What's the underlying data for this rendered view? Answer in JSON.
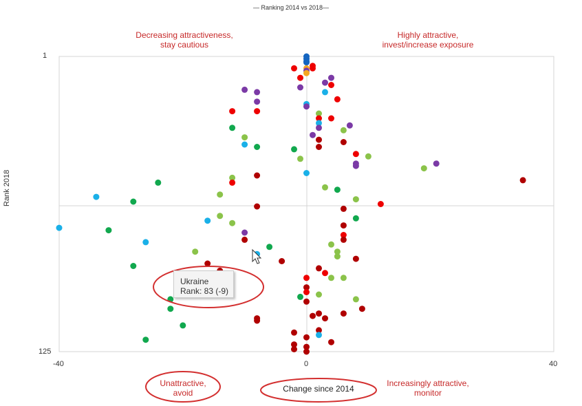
{
  "chart_data": {
    "type": "scatter",
    "title": "— Ranking 2014 vs 2018—",
    "xlabel": "Change since 2014",
    "ylabel": "Rank 2018",
    "xlim": [
      -40,
      40
    ],
    "ylim": [
      1,
      125
    ],
    "y_inverted": true,
    "xticks": [
      "-40",
      "0",
      "40"
    ],
    "yticks": [
      "1",
      "125"
    ],
    "grid": false,
    "quadrant_labels": {
      "top_left": "Decreasing attractiveness,\nstay cautious",
      "top_right": "Highly attractive,\ninvest/increase exposure",
      "bottom_left": "Unattractive,\navoid",
      "bottom_right": "Increasingly attractive,\nmonitor"
    },
    "tooltip": {
      "name": "Ukraine",
      "text": "Rank: 83 (-9)"
    },
    "colors": {
      "blue": "#1565c0",
      "cyan": "#1ab0e8",
      "orange": "#f5a623",
      "red": "#ee0000",
      "darkred": "#b00000",
      "purple": "#7b3aa6",
      "green": "#11a84e",
      "lightgreen": "#8bc34a",
      "annotation": "#d32f2f"
    },
    "points": [
      {
        "x": 0,
        "y": 1,
        "c": "blue"
      },
      {
        "x": 0,
        "y": 2,
        "c": "blue"
      },
      {
        "x": 0,
        "y": 3,
        "c": "blue"
      },
      {
        "x": 0,
        "y": 3.5,
        "c": "blue"
      },
      {
        "x": 0,
        "y": 6,
        "c": "orange"
      },
      {
        "x": 0,
        "y": 7,
        "c": "purple"
      },
      {
        "x": 0,
        "y": 8,
        "c": "orange"
      },
      {
        "x": -2,
        "y": 6,
        "c": "red"
      },
      {
        "x": 1,
        "y": 5,
        "c": "red"
      },
      {
        "x": 1,
        "y": 6,
        "c": "red"
      },
      {
        "x": -1,
        "y": 10,
        "c": "red"
      },
      {
        "x": 4,
        "y": 10,
        "c": "purple"
      },
      {
        "x": 3,
        "y": 12,
        "c": "purple"
      },
      {
        "x": 4,
        "y": 13,
        "c": "red"
      },
      {
        "x": -1,
        "y": 14,
        "c": "purple"
      },
      {
        "x": -10,
        "y": 15,
        "c": "purple"
      },
      {
        "x": -8,
        "y": 16,
        "c": "purple"
      },
      {
        "x": 3,
        "y": 16,
        "c": "cyan"
      },
      {
        "x": 5,
        "y": 19,
        "c": "red"
      },
      {
        "x": -8,
        "y": 20,
        "c": "purple"
      },
      {
        "x": 0,
        "y": 21,
        "c": "cyan"
      },
      {
        "x": 0,
        "y": 22,
        "c": "purple"
      },
      {
        "x": -12,
        "y": 24,
        "c": "red"
      },
      {
        "x": -8,
        "y": 24,
        "c": "red"
      },
      {
        "x": 2,
        "y": 25,
        "c": "lightgreen"
      },
      {
        "x": 2,
        "y": 27,
        "c": "red"
      },
      {
        "x": 4,
        "y": 27,
        "c": "red"
      },
      {
        "x": 2,
        "y": 29,
        "c": "cyan"
      },
      {
        "x": 7,
        "y": 30,
        "c": "purple"
      },
      {
        "x": -12,
        "y": 31,
        "c": "green"
      },
      {
        "x": 2,
        "y": 31,
        "c": "purple"
      },
      {
        "x": 6,
        "y": 32,
        "c": "lightgreen"
      },
      {
        "x": -10,
        "y": 35,
        "c": "lightgreen"
      },
      {
        "x": 1,
        "y": 34,
        "c": "purple"
      },
      {
        "x": 2,
        "y": 36,
        "c": "darkred"
      },
      {
        "x": 6,
        "y": 37,
        "c": "darkred"
      },
      {
        "x": -10,
        "y": 38,
        "c": "cyan"
      },
      {
        "x": -8,
        "y": 39,
        "c": "green"
      },
      {
        "x": 2,
        "y": 39,
        "c": "darkred"
      },
      {
        "x": -2,
        "y": 40,
        "c": "green"
      },
      {
        "x": 8,
        "y": 42,
        "c": "red"
      },
      {
        "x": 10,
        "y": 43,
        "c": "lightgreen"
      },
      {
        "x": -1,
        "y": 44,
        "c": "lightgreen"
      },
      {
        "x": 8,
        "y": 46,
        "c": "purple"
      },
      {
        "x": 8,
        "y": 47,
        "c": "purple"
      },
      {
        "x": 21,
        "y": 46,
        "c": "purple"
      },
      {
        "x": 19,
        "y": 48,
        "c": "lightgreen"
      },
      {
        "x": 0,
        "y": 50,
        "c": "cyan"
      },
      {
        "x": -8,
        "y": 51,
        "c": "darkred"
      },
      {
        "x": -12,
        "y": 52,
        "c": "lightgreen"
      },
      {
        "x": -24,
        "y": 54,
        "c": "green"
      },
      {
        "x": -12,
        "y": 54,
        "c": "red"
      },
      {
        "x": 35,
        "y": 53,
        "c": "darkred"
      },
      {
        "x": 3,
        "y": 56,
        "c": "lightgreen"
      },
      {
        "x": 5,
        "y": 57,
        "c": "green"
      },
      {
        "x": -14,
        "y": 59,
        "c": "lightgreen"
      },
      {
        "x": -34,
        "y": 60,
        "c": "cyan"
      },
      {
        "x": 8,
        "y": 61,
        "c": "lightgreen"
      },
      {
        "x": -28,
        "y": 62,
        "c": "green"
      },
      {
        "x": -8,
        "y": 64,
        "c": "darkred"
      },
      {
        "x": 12,
        "y": 63,
        "c": "red"
      },
      {
        "x": 6,
        "y": 65,
        "c": "darkred"
      },
      {
        "x": -14,
        "y": 68,
        "c": "lightgreen"
      },
      {
        "x": 8,
        "y": 69,
        "c": "green"
      },
      {
        "x": -16,
        "y": 70,
        "c": "cyan"
      },
      {
        "x": -12,
        "y": 71,
        "c": "lightgreen"
      },
      {
        "x": 6,
        "y": 72,
        "c": "darkred"
      },
      {
        "x": -40,
        "y": 73,
        "c": "cyan"
      },
      {
        "x": -32,
        "y": 74,
        "c": "green"
      },
      {
        "x": -10,
        "y": 75,
        "c": "purple"
      },
      {
        "x": 6,
        "y": 76,
        "c": "red"
      },
      {
        "x": -10,
        "y": 78,
        "c": "darkred"
      },
      {
        "x": 6,
        "y": 78,
        "c": "darkred"
      },
      {
        "x": -26,
        "y": 79,
        "c": "cyan"
      },
      {
        "x": 4,
        "y": 80,
        "c": "lightgreen"
      },
      {
        "x": -6,
        "y": 81,
        "c": "green"
      },
      {
        "x": -18,
        "y": 83,
        "c": "lightgreen"
      },
      {
        "x": 5,
        "y": 83,
        "c": "lightgreen"
      },
      {
        "x": -8,
        "y": 84,
        "c": "cyan"
      },
      {
        "x": 5,
        "y": 85,
        "c": "lightgreen"
      },
      {
        "x": 8,
        "y": 86,
        "c": "darkred"
      },
      {
        "x": -4,
        "y": 87,
        "c": "darkred"
      },
      {
        "x": -16,
        "y": 88,
        "c": "darkred"
      },
      {
        "x": -28,
        "y": 89,
        "c": "green"
      },
      {
        "x": 2,
        "y": 90,
        "c": "darkred"
      },
      {
        "x": -14,
        "y": 91,
        "c": "darkred"
      },
      {
        "x": 3,
        "y": 92,
        "c": "red"
      },
      {
        "x": 4,
        "y": 94,
        "c": "lightgreen"
      },
      {
        "x": 0,
        "y": 94,
        "c": "red"
      },
      {
        "x": 6,
        "y": 94,
        "c": "lightgreen"
      },
      {
        "x": -14,
        "y": 95,
        "c": "green"
      },
      {
        "x": 0,
        "y": 98,
        "c": "darkred"
      },
      {
        "x": 0,
        "y": 100,
        "c": "red"
      },
      {
        "x": -1,
        "y": 102,
        "c": "green"
      },
      {
        "x": 2,
        "y": 101,
        "c": "lightgreen"
      },
      {
        "x": -22,
        "y": 103,
        "c": "green"
      },
      {
        "x": 8,
        "y": 103,
        "c": "lightgreen"
      },
      {
        "x": -22,
        "y": 107,
        "c": "green"
      },
      {
        "x": 0,
        "y": 104,
        "c": "darkred"
      },
      {
        "x": 9,
        "y": 107,
        "c": "darkred"
      },
      {
        "x": 6,
        "y": 109,
        "c": "darkred"
      },
      {
        "x": 2,
        "y": 109,
        "c": "darkred"
      },
      {
        "x": 1,
        "y": 110,
        "c": "darkred"
      },
      {
        "x": -8,
        "y": 111,
        "c": "darkred"
      },
      {
        "x": -8,
        "y": 112,
        "c": "darkred"
      },
      {
        "x": 3,
        "y": 111,
        "c": "darkred"
      },
      {
        "x": -20,
        "y": 114,
        "c": "green"
      },
      {
        "x": 2,
        "y": 116,
        "c": "darkred"
      },
      {
        "x": -2,
        "y": 117,
        "c": "darkred"
      },
      {
        "x": 2,
        "y": 118,
        "c": "cyan"
      },
      {
        "x": 0,
        "y": 119,
        "c": "darkred"
      },
      {
        "x": -26,
        "y": 120,
        "c": "green"
      },
      {
        "x": 4,
        "y": 121,
        "c": "darkred"
      },
      {
        "x": -2,
        "y": 122,
        "c": "darkred"
      },
      {
        "x": 0,
        "y": 123,
        "c": "darkred"
      },
      {
        "x": -2,
        "y": 124,
        "c": "darkred"
      },
      {
        "x": 0,
        "y": 125,
        "c": "darkred"
      }
    ]
  }
}
